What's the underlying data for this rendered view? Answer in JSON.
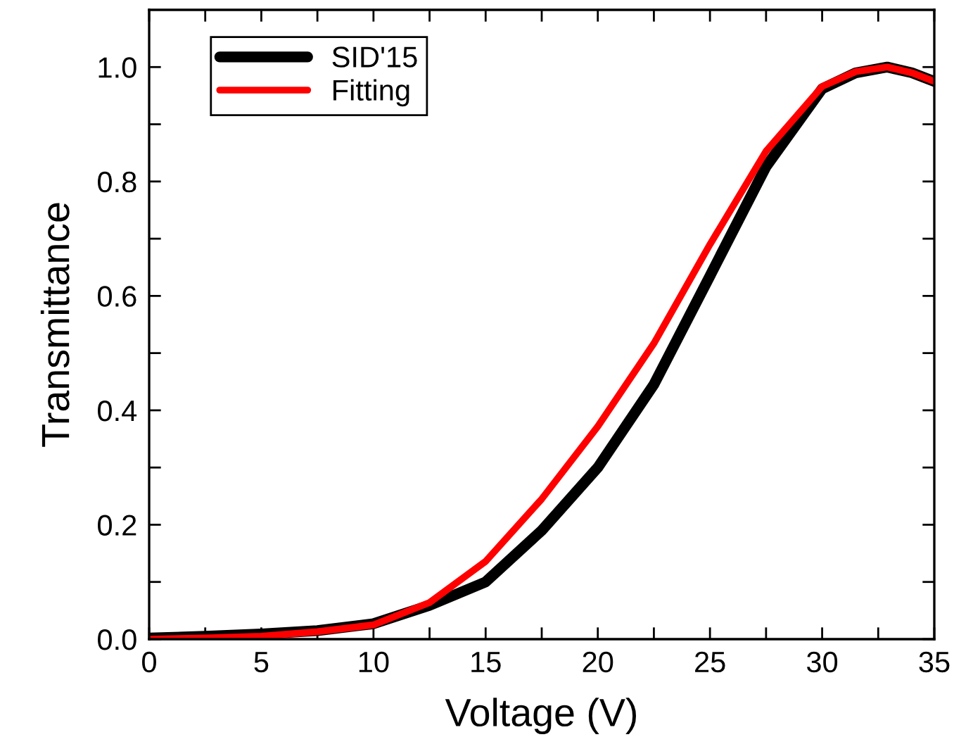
{
  "chart_data": {
    "type": "line",
    "xlabel": "Voltage (V)",
    "ylabel": "Transmittance",
    "series": [
      {
        "name": "SID'15",
        "color": "#000000",
        "x": [
          0,
          2.5,
          5,
          7.5,
          10,
          12.5,
          15,
          17.5,
          20,
          22.5,
          25,
          27.5,
          30,
          31.5,
          32.9,
          34,
          35
        ],
        "values": [
          0.002,
          0.005,
          0.009,
          0.015,
          0.027,
          0.059,
          0.1,
          0.19,
          0.3,
          0.445,
          0.635,
          0.826,
          0.962,
          0.99,
          1.0,
          0.99,
          0.975
        ]
      },
      {
        "name": "Fitting",
        "color": "#ff0000",
        "x": [
          0,
          2.5,
          5,
          7.5,
          10,
          12.5,
          15,
          17.5,
          20,
          22.5,
          25,
          27.5,
          30,
          31.5,
          32.9,
          34,
          35
        ],
        "values": [
          0.0,
          0.002,
          0.005,
          0.013,
          0.025,
          0.064,
          0.136,
          0.245,
          0.372,
          0.517,
          0.69,
          0.853,
          0.966,
          0.992,
          1.0,
          0.99,
          0.975
        ]
      }
    ],
    "xlim": [
      0,
      35
    ],
    "ylim": [
      0,
      1.1
    ],
    "xticks": [
      0,
      {
        "value": 2.5,
        "label": null
      },
      5,
      {
        "value": 7.5,
        "label": null
      },
      10,
      {
        "value": 12.5,
        "label": null
      },
      15,
      {
        "value": 17.5,
        "label": null
      },
      20,
      {
        "value": 22.5,
        "label": null
      },
      25,
      {
        "value": 27.5,
        "label": null
      },
      30,
      {
        "value": 32.5,
        "label": null
      },
      35
    ],
    "yticks": [
      {
        "value": 0,
        "label": "0.0"
      },
      {
        "value": 0.1,
        "label": null
      },
      {
        "value": 0.2,
        "label": "0.2"
      },
      {
        "value": 0.3,
        "label": null
      },
      {
        "value": 0.4,
        "label": "0.4"
      },
      {
        "value": 0.5,
        "label": null
      },
      {
        "value": 0.6,
        "label": "0.6"
      },
      {
        "value": 0.7,
        "label": null
      },
      {
        "value": 0.8,
        "label": "0.8"
      },
      {
        "value": 0.9,
        "label": null
      },
      {
        "value": 1.0,
        "label": "1.0"
      }
    ],
    "legend": "top left",
    "grid": false,
    "line_style": "solid",
    "marker": "none"
  }
}
